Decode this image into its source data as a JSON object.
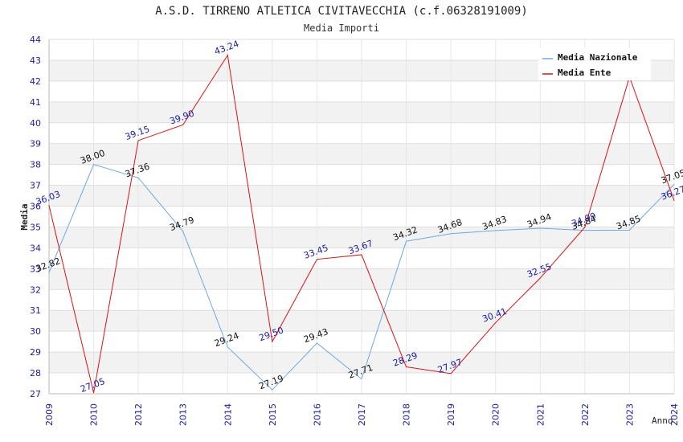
{
  "chart_data": {
    "type": "line",
    "title": "A.S.D. TIRRENO ATLETICA CIVITAVECCHIA (c.f.06328191009)",
    "subtitle": "Media Importi",
    "xlabel": "Anno",
    "ylabel": "Media",
    "ylim": [
      27,
      44
    ],
    "yticks": [
      "27",
      "28",
      "29",
      "30",
      "31",
      "32",
      "33",
      "34",
      "35",
      "36",
      "37",
      "38",
      "39",
      "40",
      "41",
      "42",
      "43",
      "44"
    ],
    "categories": [
      "2009",
      "2010",
      "2012",
      "2013",
      "2014",
      "2015",
      "2016",
      "2017",
      "2018",
      "2019",
      "2020",
      "2021",
      "2022",
      "2023",
      "2024"
    ],
    "legend_position": "top-right",
    "series": [
      {
        "name": "Media Nazionale",
        "color": "#6aa9e8",
        "values": [
          32.82,
          38.0,
          37.36,
          34.79,
          29.24,
          27.19,
          29.43,
          27.71,
          34.32,
          34.68,
          34.83,
          34.94,
          34.84,
          34.85,
          37.05
        ],
        "labels": [
          "32.82",
          "38.00",
          "37.36",
          "34.79",
          "29.24",
          "27.19",
          "29.43",
          "27.71",
          "34.32",
          "34.68",
          "34.83",
          "34.94",
          "34.84",
          "34.85",
          "37.05"
        ]
      },
      {
        "name": "Media Ente",
        "color": "#dd1111",
        "values": [
          36.03,
          27.05,
          39.15,
          39.9,
          43.24,
          29.5,
          33.45,
          33.67,
          28.29,
          27.97,
          30.41,
          32.55,
          34.99,
          42.2,
          36.27
        ],
        "labels": [
          "36.03",
          "27.05",
          "39.15",
          "39.90",
          "43.24",
          "29.50",
          "33.45",
          "33.67",
          "28.29",
          "27.97",
          "30.41",
          "32.55",
          "34.99",
          "",
          "36.27"
        ]
      }
    ]
  }
}
